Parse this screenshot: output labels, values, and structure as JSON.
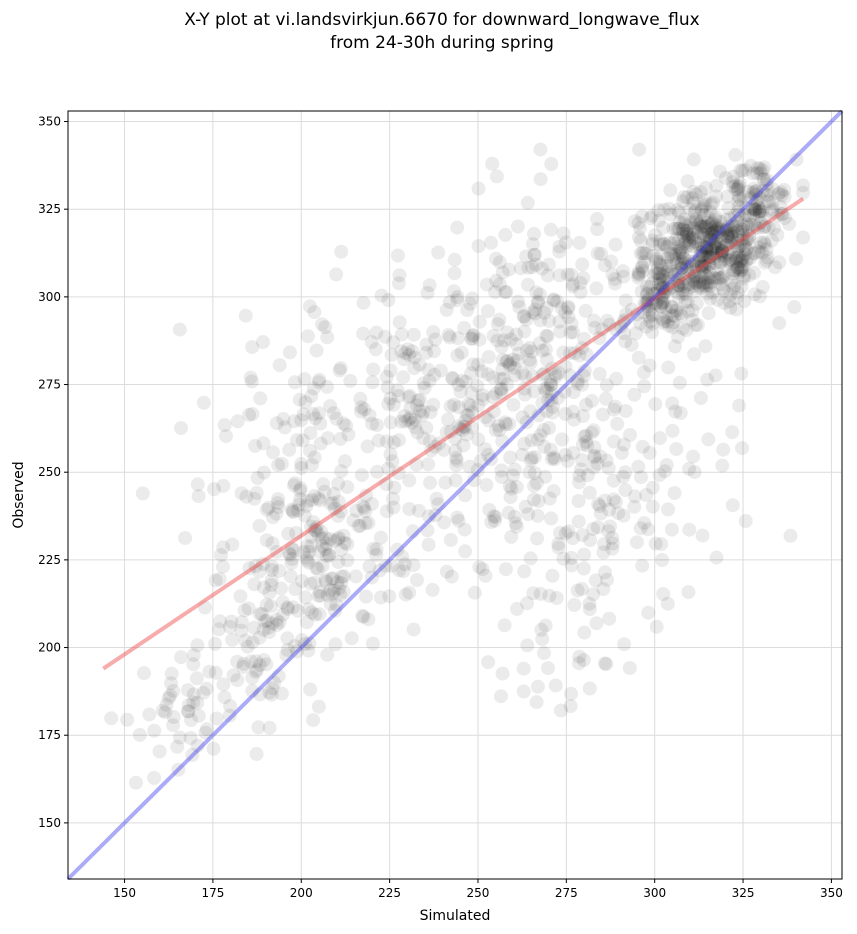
{
  "chart_data": {
    "type": "scatter",
    "title_line1": "X-Y plot at vi.landsvirkjun.6670 for downward_longwave_flux",
    "title_line2": "from 24-30h during spring",
    "xlabel": "Simulated",
    "ylabel": "Observed",
    "xlim": [
      134,
      353
    ],
    "ylim": [
      134,
      353
    ],
    "xticks": [
      150,
      175,
      200,
      225,
      250,
      275,
      300,
      325,
      350
    ],
    "yticks": [
      150,
      175,
      200,
      225,
      250,
      275,
      300,
      325,
      350
    ],
    "grid": true,
    "series": [
      {
        "kind": "points",
        "color": "#000000",
        "opacity": 0.08,
        "clusters": [
          {
            "center": [
              315,
              313
            ],
            "spread": [
              9,
              8
            ],
            "count": 420
          },
          {
            "center": [
              303,
              300
            ],
            "spread": [
              5,
              5
            ],
            "count": 80
          },
          {
            "center": [
              328,
              327
            ],
            "spread": [
              6,
              6
            ],
            "count": 90
          },
          {
            "center": [
              205,
              228
            ],
            "spread": [
              13,
              14
            ],
            "count": 180
          },
          {
            "center": [
              240,
              268
            ],
            "spread": [
              18,
              20
            ],
            "count": 260
          },
          {
            "center": [
              275,
              285
            ],
            "spread": [
              18,
              22
            ],
            "count": 250
          },
          {
            "center": [
              285,
              240
            ],
            "spread": [
              18,
              20
            ],
            "count": 140
          },
          {
            "center": [
              190,
              205
            ],
            "spread": [
              8,
              12
            ],
            "count": 70
          },
          {
            "center": [
              165,
              180
            ],
            "spread": [
              8,
              10
            ],
            "count": 55
          },
          {
            "center": [
              272,
              200
            ],
            "spread": [
              8,
              14
            ],
            "count": 35
          },
          {
            "center": [
              195,
              265
            ],
            "spread": [
              12,
              14
            ],
            "count": 60
          }
        ]
      }
    ],
    "lines": [
      {
        "name": "",
        "color": "#ee4444",
        "opacity": 0.45,
        "points": [
          [
            144,
            194
          ],
          [
            342,
            328
          ]
        ]
      },
      {
        "name": "",
        "color": "#4444ee",
        "opacity": 0.45,
        "points": [
          [
            134,
            134
          ],
          [
            353,
            353
          ]
        ]
      }
    ]
  }
}
